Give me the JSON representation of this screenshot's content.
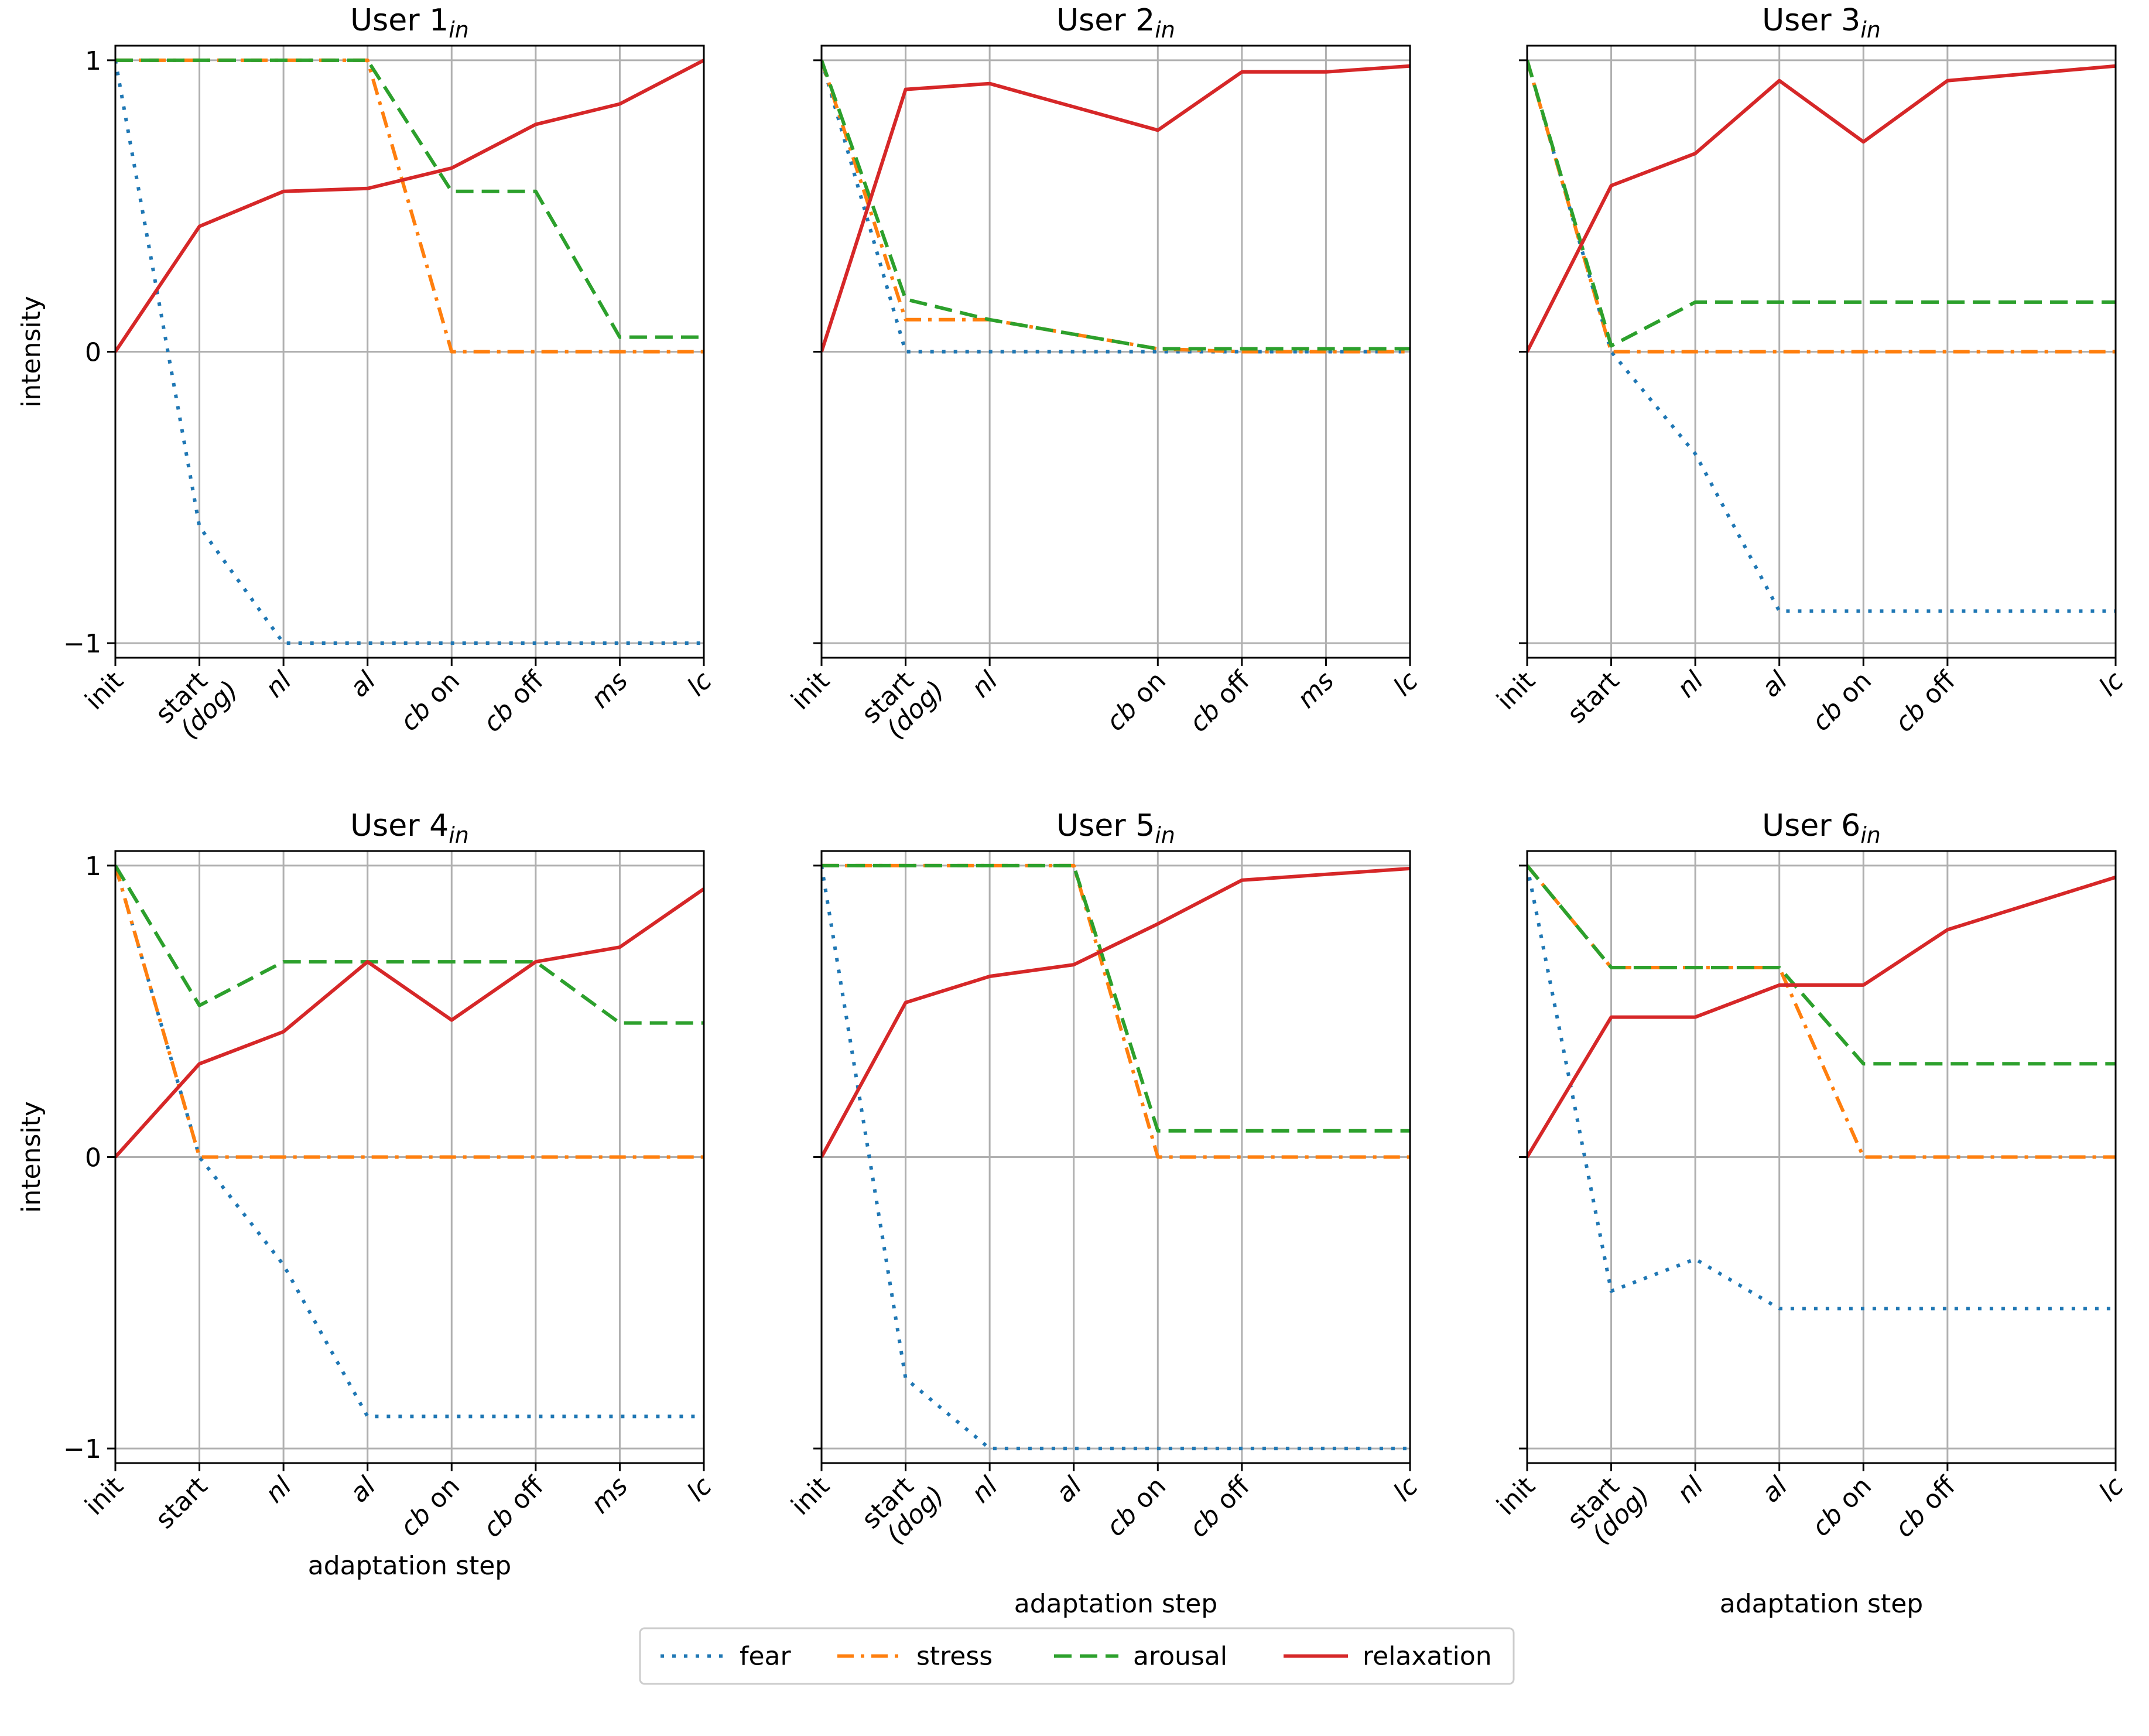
{
  "chart_data": {
    "type": "line",
    "ylabel": "intensity",
    "xlabel": "adaptation step",
    "ylim": [
      -1.05,
      1.05
    ],
    "yticks": [
      1,
      0,
      -1
    ],
    "grid": true,
    "legend": {
      "placement": "bottom-center",
      "entries": [
        "fear",
        "stress",
        "arousal",
        "relaxation"
      ]
    },
    "series_colors": {
      "fear": "#1f77b4",
      "stress": "#ff7f0e",
      "arousal": "#2ca02c",
      "relaxation": "#d62728"
    },
    "panels": [
      {
        "title": "User 1",
        "title_sub": "in",
        "x": [
          0,
          1,
          2,
          3,
          4,
          5,
          6,
          7
        ],
        "xticks": [
          {
            "pos": 0,
            "label": "init"
          },
          {
            "pos": 1,
            "label": "start",
            "label2": "(dog)"
          },
          {
            "pos": 2,
            "label": "nl",
            "italic": true
          },
          {
            "pos": 3,
            "label": "al",
            "italic": true
          },
          {
            "pos": 4,
            "label": "cb",
            "suffix": " on",
            "italic": true
          },
          {
            "pos": 5,
            "label": "cb",
            "suffix": " off",
            "italic": true
          },
          {
            "pos": 6,
            "label": "ms",
            "italic": true
          },
          {
            "pos": 7,
            "label": "lc",
            "italic": true
          }
        ],
        "series": [
          {
            "name": "fear",
            "values": [
              1,
              -0.6,
              -1,
              -1,
              -1,
              -1,
              -1,
              -1
            ]
          },
          {
            "name": "stress",
            "values": [
              1,
              1,
              1,
              1,
              0,
              0,
              0,
              0
            ]
          },
          {
            "name": "arousal",
            "values": [
              1,
              1,
              1,
              1,
              0.55,
              0.55,
              0.05,
              0.05
            ]
          },
          {
            "name": "relaxation",
            "values": [
              0,
              0.43,
              0.55,
              0.56,
              0.63,
              0.78,
              0.85,
              1
            ]
          }
        ]
      },
      {
        "title": "User 2",
        "title_sub": "in",
        "x": [
          0,
          1,
          2,
          4,
          5,
          6,
          7
        ],
        "xticks": [
          {
            "pos": 0,
            "label": "init"
          },
          {
            "pos": 1,
            "label": "start",
            "label2": "(dog)"
          },
          {
            "pos": 2,
            "label": "nl",
            "italic": true
          },
          {
            "pos": 4,
            "label": "cb",
            "suffix": " on",
            "italic": true
          },
          {
            "pos": 5,
            "label": "cb",
            "suffix": " off",
            "italic": true
          },
          {
            "pos": 6,
            "label": "ms",
            "italic": true
          },
          {
            "pos": 7,
            "label": "lc",
            "italic": true
          }
        ],
        "series": [
          {
            "name": "fear",
            "values": [
              1,
              0,
              0,
              0,
              0,
              0,
              0
            ]
          },
          {
            "name": "stress",
            "values": [
              1,
              0.11,
              0.11,
              0.01,
              0,
              0,
              0
            ]
          },
          {
            "name": "arousal",
            "values": [
              1,
              0.18,
              0.11,
              0.01,
              0.01,
              0.01,
              0.01
            ]
          },
          {
            "name": "relaxation",
            "values": [
              0,
              0.9,
              0.92,
              0.76,
              0.96,
              0.96,
              0.98
            ]
          }
        ]
      },
      {
        "title": "User 3",
        "title_sub": "in",
        "x": [
          0,
          1,
          2,
          3,
          4,
          5,
          7
        ],
        "xticks": [
          {
            "pos": 0,
            "label": "init"
          },
          {
            "pos": 1,
            "label": "start"
          },
          {
            "pos": 2,
            "label": "nl",
            "italic": true
          },
          {
            "pos": 3,
            "label": "al",
            "italic": true
          },
          {
            "pos": 4,
            "label": "cb",
            "suffix": " on",
            "italic": true
          },
          {
            "pos": 5,
            "label": "cb",
            "suffix": " off",
            "italic": true
          },
          {
            "pos": 7,
            "label": "lc",
            "italic": true
          }
        ],
        "series": [
          {
            "name": "fear",
            "values": [
              1,
              0,
              -0.35,
              -0.89,
              -0.89,
              -0.89,
              -0.89
            ]
          },
          {
            "name": "stress",
            "values": [
              1,
              0,
              0,
              0,
              0,
              0,
              0
            ]
          },
          {
            "name": "arousal",
            "values": [
              1,
              0.02,
              0.17,
              0.17,
              0.17,
              0.17,
              0.17
            ]
          },
          {
            "name": "relaxation",
            "values": [
              0,
              0.57,
              0.68,
              0.93,
              0.72,
              0.93,
              0.98
            ]
          }
        ]
      },
      {
        "title": "User 4",
        "title_sub": "in",
        "x": [
          0,
          1,
          2,
          3,
          4,
          5,
          6,
          7
        ],
        "xticks": [
          {
            "pos": 0,
            "label": "init"
          },
          {
            "pos": 1,
            "label": "start"
          },
          {
            "pos": 2,
            "label": "nl",
            "italic": true
          },
          {
            "pos": 3,
            "label": "al",
            "italic": true
          },
          {
            "pos": 4,
            "label": "cb",
            "suffix": " on",
            "italic": true
          },
          {
            "pos": 5,
            "label": "cb",
            "suffix": " off",
            "italic": true
          },
          {
            "pos": 6,
            "label": "ms",
            "italic": true
          },
          {
            "pos": 7,
            "label": "lc",
            "italic": true
          }
        ],
        "series": [
          {
            "name": "fear",
            "values": [
              1,
              0,
              -0.37,
              -0.89,
              -0.89,
              -0.89,
              -0.89,
              -0.89
            ]
          },
          {
            "name": "stress",
            "values": [
              1,
              0,
              0,
              0,
              0,
              0,
              0,
              0
            ]
          },
          {
            "name": "arousal",
            "values": [
              1,
              0.52,
              0.67,
              0.67,
              0.67,
              0.67,
              0.46,
              0.46
            ]
          },
          {
            "name": "relaxation",
            "values": [
              0,
              0.32,
              0.43,
              0.67,
              0.47,
              0.67,
              0.72,
              0.92
            ]
          }
        ]
      },
      {
        "title": "User 5",
        "title_sub": "in",
        "x": [
          0,
          1,
          2,
          3,
          4,
          5,
          7
        ],
        "xticks": [
          {
            "pos": 0,
            "label": "init"
          },
          {
            "pos": 1,
            "label": "start",
            "label2": "(dog)"
          },
          {
            "pos": 2,
            "label": "nl",
            "italic": true
          },
          {
            "pos": 3,
            "label": "al",
            "italic": true
          },
          {
            "pos": 4,
            "label": "cb",
            "suffix": " on",
            "italic": true
          },
          {
            "pos": 5,
            "label": "cb",
            "suffix": " off",
            "italic": true
          },
          {
            "pos": 7,
            "label": "lc",
            "italic": true
          }
        ],
        "series": [
          {
            "name": "fear",
            "values": [
              1,
              -0.76,
              -1,
              -1,
              -1,
              -1,
              -1
            ]
          },
          {
            "name": "stress",
            "values": [
              1,
              1,
              1,
              1,
              0,
              0,
              0
            ]
          },
          {
            "name": "arousal",
            "values": [
              1,
              1,
              1,
              1,
              0.09,
              0.09,
              0.09
            ]
          },
          {
            "name": "relaxation",
            "values": [
              0,
              0.53,
              0.62,
              0.66,
              0.8,
              0.95,
              0.99
            ]
          }
        ]
      },
      {
        "title": "User 6",
        "title_sub": "in",
        "x": [
          0,
          1,
          2,
          3,
          4,
          5,
          7
        ],
        "xticks": [
          {
            "pos": 0,
            "label": "init"
          },
          {
            "pos": 1,
            "label": "start",
            "label2": "(dog)"
          },
          {
            "pos": 2,
            "label": "nl",
            "italic": true
          },
          {
            "pos": 3,
            "label": "al",
            "italic": true
          },
          {
            "pos": 4,
            "label": "cb",
            "suffix": " on",
            "italic": true
          },
          {
            "pos": 5,
            "label": "cb",
            "suffix": " off",
            "italic": true
          },
          {
            "pos": 7,
            "label": "lc",
            "italic": true
          }
        ],
        "series": [
          {
            "name": "fear",
            "values": [
              1,
              -0.46,
              -0.35,
              -0.52,
              -0.52,
              -0.52,
              -0.52
            ]
          },
          {
            "name": "stress",
            "values": [
              1,
              0.65,
              0.65,
              0.65,
              0,
              0,
              0
            ]
          },
          {
            "name": "arousal",
            "values": [
              1,
              0.65,
              0.65,
              0.65,
              0.32,
              0.32,
              0.32
            ]
          },
          {
            "name": "relaxation",
            "values": [
              0,
              0.48,
              0.48,
              0.59,
              0.59,
              0.78,
              0.96
            ]
          }
        ]
      }
    ]
  }
}
